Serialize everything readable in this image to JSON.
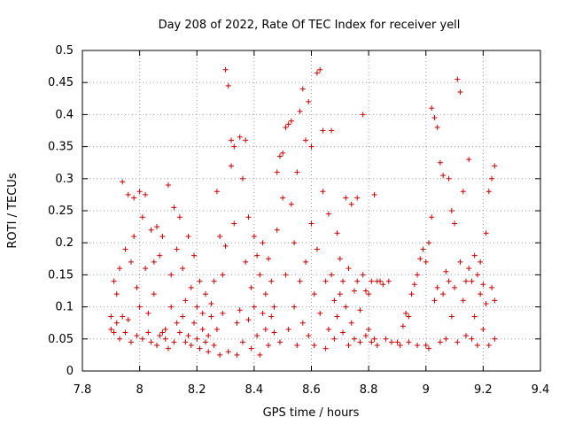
{
  "chart_data": {
    "type": "scatter",
    "title": "Day 208 of 2022, Rate Of TEC Index for receiver yell",
    "xlabel": "GPS time / hours",
    "ylabel": "ROTI / TECUs",
    "xlim": [
      7.8,
      9.4
    ],
    "ylim": [
      0,
      0.5
    ],
    "xticks": [
      7.8,
      8,
      8.2,
      8.4,
      8.6,
      8.8,
      9,
      9.2,
      9.4
    ],
    "xtick_labels": [
      "7.8",
      "8",
      "8.2",
      "8.4",
      "8.6",
      "8.8",
      "9",
      "9.2",
      "9.4"
    ],
    "yticks": [
      0,
      0.05,
      0.1,
      0.15,
      0.2,
      0.25,
      0.3,
      0.35,
      0.4,
      0.45,
      0.5
    ],
    "ytick_labels": [
      "0",
      "0.05",
      "0.1",
      "0.15",
      "0.2",
      "0.25",
      "0.3",
      "0.35",
      "0.4",
      "0.45",
      "0.5"
    ],
    "grid": true,
    "marker": "+",
    "color": "#cc0000",
    "series": [
      {
        "name": "ROTI",
        "points": [
          [
            7.9,
            0.065
          ],
          [
            7.9,
            0.085
          ],
          [
            7.91,
            0.14
          ],
          [
            7.91,
            0.06
          ],
          [
            7.92,
            0.075
          ],
          [
            7.92,
            0.12
          ],
          [
            7.93,
            0.05
          ],
          [
            7.93,
            0.16
          ],
          [
            7.94,
            0.085
          ],
          [
            7.94,
            0.295
          ],
          [
            7.95,
            0.19
          ],
          [
            7.95,
            0.06
          ],
          [
            7.96,
            0.275
          ],
          [
            7.96,
            0.08
          ],
          [
            7.97,
            0.17
          ],
          [
            7.97,
            0.045
          ],
          [
            7.98,
            0.27
          ],
          [
            7.98,
            0.21
          ],
          [
            7.99,
            0.055
          ],
          [
            7.99,
            0.13
          ],
          [
            8.0,
            0.28
          ],
          [
            8.0,
            0.1
          ],
          [
            8.01,
            0.05
          ],
          [
            8.01,
            0.24
          ],
          [
            8.02,
            0.275
          ],
          [
            8.02,
            0.16
          ],
          [
            8.03,
            0.06
          ],
          [
            8.03,
            0.09
          ],
          [
            8.04,
            0.045
          ],
          [
            8.04,
            0.22
          ],
          [
            8.05,
            0.12
          ],
          [
            8.05,
            0.17
          ],
          [
            8.06,
            0.04
          ],
          [
            8.06,
            0.225
          ],
          [
            8.07,
            0.055
          ],
          [
            8.07,
            0.18
          ],
          [
            8.08,
            0.06
          ],
          [
            8.08,
            0.21
          ],
          [
            8.09,
            0.065
          ],
          [
            8.09,
            0.05
          ],
          [
            8.1,
            0.29
          ],
          [
            8.1,
            0.035
          ],
          [
            8.11,
            0.15
          ],
          [
            8.11,
            0.1
          ],
          [
            8.12,
            0.045
          ],
          [
            8.12,
            0.255
          ],
          [
            8.13,
            0.075
          ],
          [
            8.13,
            0.19
          ],
          [
            8.14,
            0.06
          ],
          [
            8.14,
            0.24
          ],
          [
            8.15,
            0.085
          ],
          [
            8.15,
            0.16
          ],
          [
            8.16,
            0.045
          ],
          [
            8.16,
            0.11
          ],
          [
            8.17,
            0.21
          ],
          [
            8.17,
            0.055
          ],
          [
            8.18,
            0.13
          ],
          [
            8.18,
            0.04
          ],
          [
            8.19,
            0.075
          ],
          [
            8.19,
            0.18
          ],
          [
            8.2,
            0.05
          ],
          [
            8.2,
            0.1
          ],
          [
            8.21,
            0.14
          ],
          [
            8.21,
            0.035
          ],
          [
            8.22,
            0.065
          ],
          [
            8.22,
            0.09
          ],
          [
            8.23,
            0.045
          ],
          [
            8.23,
            0.12
          ],
          [
            8.24,
            0.055
          ],
          [
            8.24,
            0.03
          ],
          [
            8.25,
            0.085
          ],
          [
            8.25,
            0.105
          ],
          [
            8.26,
            0.04
          ],
          [
            8.26,
            0.14
          ],
          [
            8.27,
            0.28
          ],
          [
            8.27,
            0.065
          ],
          [
            8.28,
            0.025
          ],
          [
            8.28,
            0.21
          ],
          [
            8.29,
            0.15
          ],
          [
            8.29,
            0.09
          ],
          [
            8.3,
            0.47
          ],
          [
            8.3,
            0.195
          ],
          [
            8.31,
            0.445
          ],
          [
            8.31,
            0.03
          ],
          [
            8.32,
            0.36
          ],
          [
            8.32,
            0.32
          ],
          [
            8.33,
            0.35
          ],
          [
            8.33,
            0.23
          ],
          [
            8.34,
            0.025
          ],
          [
            8.34,
            0.075
          ],
          [
            8.35,
            0.365
          ],
          [
            8.35,
            0.095
          ],
          [
            8.36,
            0.3
          ],
          [
            8.36,
            0.045
          ],
          [
            8.37,
            0.36
          ],
          [
            8.37,
            0.17
          ],
          [
            8.38,
            0.24
          ],
          [
            8.38,
            0.08
          ],
          [
            8.39,
            0.035
          ],
          [
            8.39,
            0.13
          ],
          [
            8.4,
            0.21
          ],
          [
            8.4,
            0.1
          ],
          [
            8.41,
            0.055
          ],
          [
            8.41,
            0.18
          ],
          [
            8.42,
            0.025
          ],
          [
            8.42,
            0.15
          ],
          [
            8.43,
            0.09
          ],
          [
            8.43,
            0.2
          ],
          [
            8.44,
            0.065
          ],
          [
            8.44,
            0.12
          ],
          [
            8.45,
            0.04
          ],
          [
            8.45,
            0.175
          ],
          [
            8.46,
            0.085
          ],
          [
            8.46,
            0.14
          ],
          [
            8.47,
            0.06
          ],
          [
            8.47,
            0.1
          ],
          [
            8.48,
            0.31
          ],
          [
            8.48,
            0.22
          ],
          [
            8.49,
            0.335
          ],
          [
            8.49,
            0.045
          ],
          [
            8.5,
            0.34
          ],
          [
            8.5,
            0.27
          ],
          [
            8.51,
            0.38
          ],
          [
            8.51,
            0.15
          ],
          [
            8.52,
            0.385
          ],
          [
            8.52,
            0.065
          ],
          [
            8.53,
            0.39
          ],
          [
            8.53,
            0.26
          ],
          [
            8.54,
            0.1
          ],
          [
            8.54,
            0.2
          ],
          [
            8.55,
            0.04
          ],
          [
            8.55,
            0.31
          ],
          [
            8.56,
            0.405
          ],
          [
            8.56,
            0.14
          ],
          [
            8.57,
            0.44
          ],
          [
            8.57,
            0.075
          ],
          [
            8.58,
            0.36
          ],
          [
            8.58,
            0.17
          ],
          [
            8.59,
            0.42
          ],
          [
            8.59,
            0.055
          ],
          [
            8.6,
            0.35
          ],
          [
            8.6,
            0.23
          ],
          [
            8.61,
            0.12
          ],
          [
            8.61,
            0.04
          ],
          [
            8.62,
            0.465
          ],
          [
            8.62,
            0.19
          ],
          [
            8.63,
            0.47
          ],
          [
            8.63,
            0.09
          ],
          [
            8.64,
            0.375
          ],
          [
            8.64,
            0.28
          ],
          [
            8.65,
            0.14
          ],
          [
            8.65,
            0.035
          ],
          [
            8.66,
            0.245
          ],
          [
            8.66,
            0.065
          ],
          [
            8.67,
            0.375
          ],
          [
            8.67,
            0.15
          ],
          [
            8.68,
            0.11
          ],
          [
            8.68,
            0.05
          ],
          [
            8.69,
            0.215
          ],
          [
            8.69,
            0.085
          ],
          [
            8.7,
            0.175
          ],
          [
            8.7,
            0.12
          ],
          [
            8.71,
            0.06
          ],
          [
            8.71,
            0.14
          ],
          [
            8.72,
            0.27
          ],
          [
            8.72,
            0.1
          ],
          [
            8.73,
            0.04
          ],
          [
            8.73,
            0.16
          ],
          [
            8.74,
            0.26
          ],
          [
            8.74,
            0.075
          ],
          [
            8.75,
            0.125
          ],
          [
            8.75,
            0.05
          ],
          [
            8.76,
            0.27
          ],
          [
            8.76,
            0.14
          ],
          [
            8.77,
            0.095
          ],
          [
            8.77,
            0.045
          ],
          [
            8.78,
            0.4
          ],
          [
            8.78,
            0.15
          ],
          [
            8.79,
            0.125
          ],
          [
            8.79,
            0.055
          ],
          [
            8.8,
            0.12
          ],
          [
            8.8,
            0.065
          ],
          [
            8.81,
            0.045
          ],
          [
            8.81,
            0.14
          ],
          [
            8.82,
            0.275
          ],
          [
            8.82,
            0.05
          ],
          [
            8.83,
            0.14
          ],
          [
            8.83,
            0.04
          ],
          [
            8.84,
            0.14
          ],
          [
            8.85,
            0.135
          ],
          [
            8.86,
            0.05
          ],
          [
            8.87,
            0.14
          ],
          [
            8.88,
            0.045
          ],
          [
            8.9,
            0.045
          ],
          [
            8.91,
            0.04
          ],
          [
            8.92,
            0.07
          ],
          [
            8.93,
            0.09
          ],
          [
            8.94,
            0.085
          ],
          [
            8.94,
            0.045
          ],
          [
            8.95,
            0.12
          ],
          [
            8.96,
            0.135
          ],
          [
            8.97,
            0.15
          ],
          [
            8.97,
            0.04
          ],
          [
            8.98,
            0.175
          ],
          [
            8.99,
            0.19
          ],
          [
            9.0,
            0.17
          ],
          [
            9.0,
            0.04
          ],
          [
            9.01,
            0.035
          ],
          [
            9.01,
            0.2
          ],
          [
            9.02,
            0.41
          ],
          [
            9.02,
            0.24
          ],
          [
            9.03,
            0.395
          ],
          [
            9.03,
            0.11
          ],
          [
            9.04,
            0.38
          ],
          [
            9.04,
            0.13
          ],
          [
            9.05,
            0.325
          ],
          [
            9.05,
            0.045
          ],
          [
            9.06,
            0.305
          ],
          [
            9.06,
            0.12
          ],
          [
            9.07,
            0.155
          ],
          [
            9.07,
            0.05
          ],
          [
            9.08,
            0.3
          ],
          [
            9.08,
            0.14
          ],
          [
            9.09,
            0.25
          ],
          [
            9.09,
            0.085
          ],
          [
            9.1,
            0.23
          ],
          [
            9.1,
            0.13
          ],
          [
            9.11,
            0.455
          ],
          [
            9.11,
            0.045
          ],
          [
            9.12,
            0.435
          ],
          [
            9.12,
            0.17
          ],
          [
            9.13,
            0.28
          ],
          [
            9.13,
            0.11
          ],
          [
            9.14,
            0.14
          ],
          [
            9.14,
            0.055
          ],
          [
            9.15,
            0.33
          ],
          [
            9.15,
            0.16
          ],
          [
            9.16,
            0.14
          ],
          [
            9.16,
            0.05
          ],
          [
            9.17,
            0.18
          ],
          [
            9.17,
            0.085
          ],
          [
            9.18,
            0.15
          ],
          [
            9.18,
            0.04
          ],
          [
            9.19,
            0.12
          ],
          [
            9.19,
            0.17
          ],
          [
            9.2,
            0.135
          ],
          [
            9.2,
            0.065
          ],
          [
            9.21,
            0.215
          ],
          [
            9.21,
            0.105
          ],
          [
            9.22,
            0.28
          ],
          [
            9.22,
            0.04
          ],
          [
            9.23,
            0.3
          ],
          [
            9.23,
            0.13
          ],
          [
            9.24,
            0.32
          ],
          [
            9.24,
            0.05
          ],
          [
            9.24,
            0.11
          ]
        ]
      }
    ]
  }
}
